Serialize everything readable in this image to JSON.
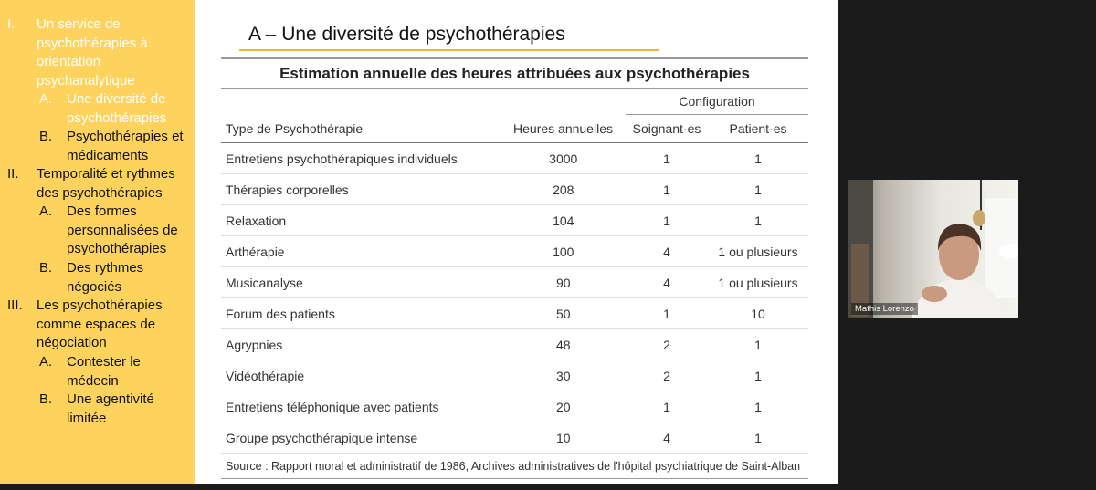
{
  "outline": [
    {
      "marker": "I.",
      "text": "Un service de psychothérapies à orientation psychanalytique",
      "level": 0,
      "active": true
    },
    {
      "marker": "A.",
      "text": "Une diversité de psychothérapies",
      "level": 1,
      "active": true
    },
    {
      "marker": "B.",
      "text": "Psychothérapies et médicaments",
      "level": 1,
      "active": false
    },
    {
      "marker": "II.",
      "text": "Temporalité et rythmes des psychothérapies",
      "level": 0,
      "active": false
    },
    {
      "marker": "A.",
      "text": "Des formes personnalisées de psychothérapies",
      "level": 1,
      "active": false
    },
    {
      "marker": "B.",
      "text": "Des rythmes négociés",
      "level": 1,
      "active": false
    },
    {
      "marker": "III.",
      "text": "Les psychothérapies comme espaces de négociation",
      "level": 0,
      "active": false
    },
    {
      "marker": "A.",
      "text": "Contester le médecin",
      "level": 1,
      "active": false
    },
    {
      "marker": "B.",
      "text": "Une agentivité limitée",
      "level": 1,
      "active": false
    }
  ],
  "slide": {
    "title": "A – Une diversité de psychothérapies"
  },
  "table": {
    "title": "Estimation annuelle des heures attribuées aux psychothérapies",
    "group_header": "Configuration",
    "headers": [
      "Type de Psychothérapie",
      "Heures annuelles",
      "Soignant·es",
      "Patient·es"
    ],
    "rows": [
      [
        "Entretiens psychothérapiques individuels",
        3000,
        1,
        1
      ],
      [
        "Thérapies corporelles",
        208,
        1,
        1
      ],
      [
        "Relaxation",
        104,
        1,
        1
      ],
      [
        "Arthérapie",
        100,
        4,
        "1 ou plusieurs"
      ],
      [
        "Musicanalyse",
        90,
        4,
        "1 ou plusieurs"
      ],
      [
        "Forum des patients",
        50,
        1,
        10
      ],
      [
        "Agrypnies",
        48,
        2,
        1
      ],
      [
        "Vidéothérapie",
        30,
        2,
        1
      ],
      [
        "Entretiens téléphonique avec patients",
        20,
        1,
        1
      ],
      [
        "Groupe psychothérapique intense",
        10,
        4,
        1
      ]
    ],
    "source": "Source : Rapport moral et administratif de 1986, Archives administratives de l'hôpital psychiatrique de Saint-Alban"
  },
  "participant": {
    "name": "Mathis Lorenzo"
  }
}
